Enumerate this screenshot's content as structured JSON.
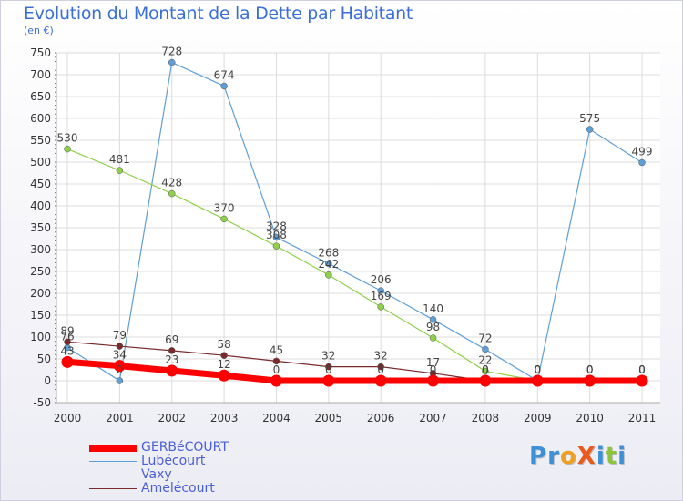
{
  "title": "Evolution du Montant de la Dette par Habitant",
  "unit": "(en €)",
  "brand": {
    "text": "ProXiti",
    "letters": [
      {
        "ch": "P",
        "color": "#3c8fd9"
      },
      {
        "ch": "r",
        "color": "#3c8fd9"
      },
      {
        "ch": "o",
        "color": "#f0a020"
      },
      {
        "ch": "X",
        "color": "#e85a1e"
      },
      {
        "ch": "i",
        "color": "#3c8fd9"
      },
      {
        "ch": "t",
        "color": "#8cc43c"
      },
      {
        "ch": "i",
        "color": "#3c8fd9"
      }
    ]
  },
  "chart_data": {
    "type": "line",
    "x": [
      "2000",
      "2001",
      "2002",
      "2003",
      "2004",
      "2005",
      "2006",
      "2007",
      "2008",
      "2009",
      "2010",
      "2011"
    ],
    "ylim": [
      -50,
      750
    ],
    "yticks": [
      -50,
      0,
      50,
      100,
      150,
      200,
      250,
      300,
      350,
      400,
      450,
      500,
      550,
      600,
      650,
      700,
      750
    ],
    "grid": true,
    "legend_position": "bottom-left",
    "series": [
      {
        "name": "GERBéCOURT",
        "color": "#ff0000",
        "values": [
          43,
          34,
          23,
          12,
          0,
          0,
          0,
          0,
          0,
          0,
          0,
          0
        ],
        "labels": [
          "43",
          "34",
          "23",
          "12",
          "0",
          "0",
          "0",
          "0",
          "0",
          "0",
          "0",
          "0"
        ]
      },
      {
        "name": "Lubécourt",
        "color": "#5f9fd6",
        "values": [
          76,
          0,
          728,
          674,
          328,
          268,
          206,
          140,
          72,
          0,
          575,
          499
        ],
        "labels": [
          "76",
          "0",
          "728",
          "674",
          "328",
          "268",
          "206",
          "140",
          "72",
          "0",
          "575",
          "499"
        ]
      },
      {
        "name": "Vaxy",
        "color": "#8ed04a",
        "values": [
          530,
          481,
          428,
          370,
          308,
          242,
          169,
          98,
          22,
          0,
          0,
          0
        ],
        "labels": [
          "530",
          "481",
          "428",
          "370",
          "308",
          "242",
          "169",
          "98",
          "22",
          "0",
          "0",
          "0"
        ]
      },
      {
        "name": "Amelécourt",
        "color": "#7a2a2a",
        "values": [
          89,
          79,
          69,
          58,
          45,
          32,
          32,
          17,
          0,
          0,
          0,
          0
        ],
        "labels": [
          "89",
          "79",
          "69",
          "58",
          "45",
          "32",
          "32",
          "17",
          "0",
          "0",
          "0",
          "0"
        ]
      }
    ]
  }
}
